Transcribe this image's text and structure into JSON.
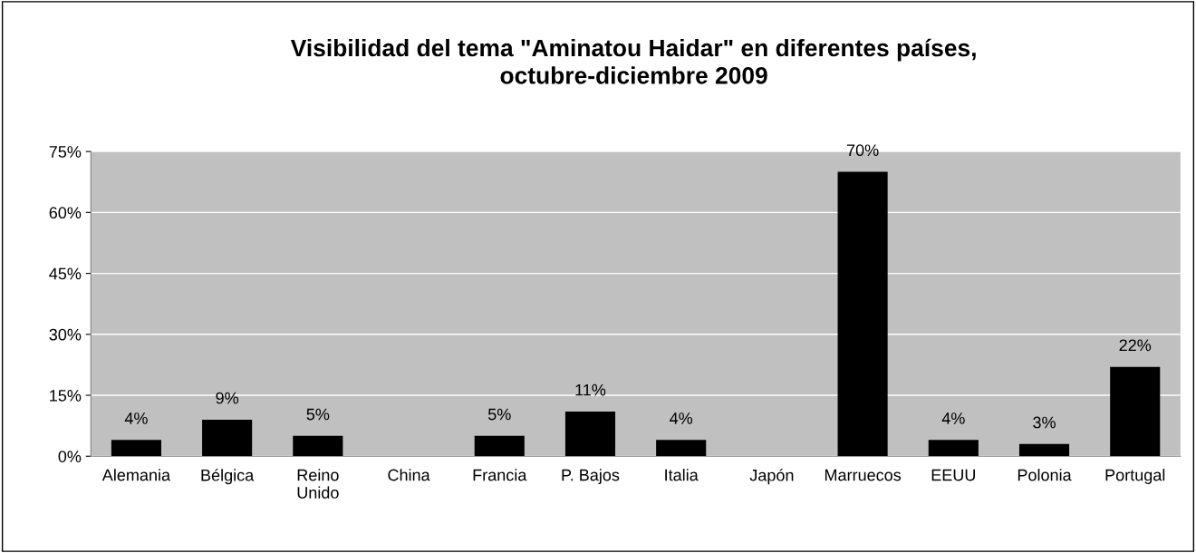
{
  "chart_data": {
    "type": "bar",
    "title": "Visibilidad del tema \"Aminatou Haidar\" en diferentes países,\noctubre-diciembre 2009",
    "categories": [
      "Alemania",
      "Bélgica",
      "Reino\nUnido",
      "China",
      "Francia",
      "P. Bajos",
      "Italia",
      "Japón",
      "Marruecos",
      "EEUU",
      "Polonia",
      "Portugal"
    ],
    "values": [
      4,
      9,
      5,
      null,
      5,
      11,
      4,
      null,
      70,
      4,
      3,
      22
    ],
    "value_labels": [
      "4%",
      "9%",
      "5%",
      null,
      "5%",
      "11%",
      "4%",
      null,
      "70%",
      "4%",
      "3%",
      "22%"
    ],
    "color": "#000000",
    "ylim": [
      0,
      75
    ],
    "yticks": [
      {
        "value": 0,
        "label": "0%"
      },
      {
        "value": 15,
        "label": "15%"
      },
      {
        "value": 30,
        "label": "30%"
      },
      {
        "value": 45,
        "label": "45%"
      },
      {
        "value": 60,
        "label": "60%"
      },
      {
        "value": 75,
        "label": "75%"
      }
    ],
    "grid": "y"
  }
}
